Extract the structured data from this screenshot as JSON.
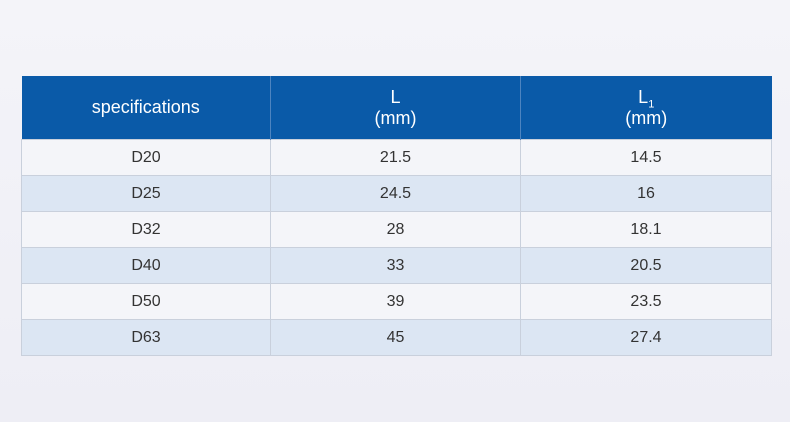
{
  "table": {
    "headers": {
      "spec": "specifications",
      "l_name": "L",
      "l_unit": "(mm)",
      "l1_name": "L",
      "l1_sub": "1",
      "l1_unit": "(mm)"
    },
    "rows": [
      {
        "spec": "D20",
        "l": "21.5",
        "l1": "14.5"
      },
      {
        "spec": "D25",
        "l": "24.5",
        "l1": "16"
      },
      {
        "spec": "D32",
        "l": "28",
        "l1": "18.1"
      },
      {
        "spec": "D40",
        "l": "33",
        "l1": "20.5"
      },
      {
        "spec": "D50",
        "l": "39",
        "l1": "23.5"
      },
      {
        "spec": "D63",
        "l": "45",
        "l1": "27.4"
      }
    ]
  },
  "colors": {
    "header_bg": "#0a5aa8",
    "row_odd_bg": "#f4f5f9",
    "row_even_bg": "#dce6f3"
  }
}
